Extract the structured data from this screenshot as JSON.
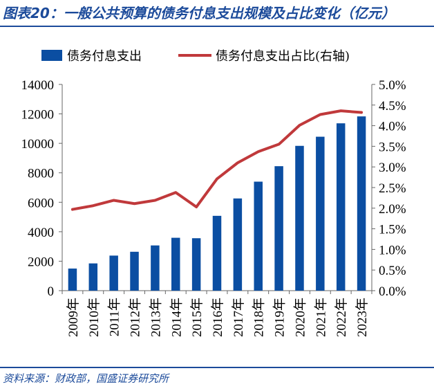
{
  "header": {
    "title": "图表20：一般公共预算的债务付息支出规模及占比变化（亿元）"
  },
  "footer": {
    "source": "资料来源：财政部，国盛证券研究所"
  },
  "colors": {
    "bar": "#0b4ea2",
    "line": "#c0393b",
    "brand": "#1b4a9a"
  },
  "chart_data": {
    "type": "bar",
    "title": "一般公共预算的债务付息支出规模及占比变化（亿元）",
    "categories": [
      "2009年",
      "2010年",
      "2011年",
      "2012年",
      "2013年",
      "2014年",
      "2015年",
      "2016年",
      "2017年",
      "2018年",
      "2019年",
      "2020年",
      "2021年",
      "2022年",
      "2023年"
    ],
    "series": [
      {
        "name": "债务付息支出",
        "type": "bar",
        "axis": "left",
        "values": [
          1500,
          1850,
          2380,
          2640,
          3070,
          3590,
          3560,
          5080,
          6260,
          7400,
          8450,
          9830,
          10450,
          11360,
          11830
        ]
      },
      {
        "name": "债务付息支出占比(右轴)",
        "type": "line",
        "axis": "right",
        "values": [
          1.97,
          2.06,
          2.19,
          2.11,
          2.19,
          2.38,
          2.03,
          2.71,
          3.1,
          3.37,
          3.55,
          4.01,
          4.27,
          4.36,
          4.32
        ]
      }
    ],
    "y_left": {
      "min": 0,
      "max": 14000,
      "ticks": [
        0,
        2000,
        4000,
        6000,
        8000,
        10000,
        12000,
        14000
      ],
      "tick_labels": [
        "0",
        "2000",
        "4000",
        "6000",
        "8000",
        "10000",
        "12000",
        "14000"
      ]
    },
    "y_right": {
      "min": 0,
      "max": 5,
      "ticks": [
        0,
        0.5,
        1,
        1.5,
        2,
        2.5,
        3,
        3.5,
        4,
        4.5,
        5
      ],
      "tick_labels": [
        "0.0%",
        "0.5%",
        "1.0%",
        "1.5%",
        "2.0%",
        "2.5%",
        "3.0%",
        "3.5%",
        "4.0%",
        "4.5%",
        "5.0%"
      ]
    },
    "legend": {
      "position": "top",
      "items": [
        "债务付息支出",
        "债务付息支出占比(右轴)"
      ]
    },
    "grid": false
  }
}
